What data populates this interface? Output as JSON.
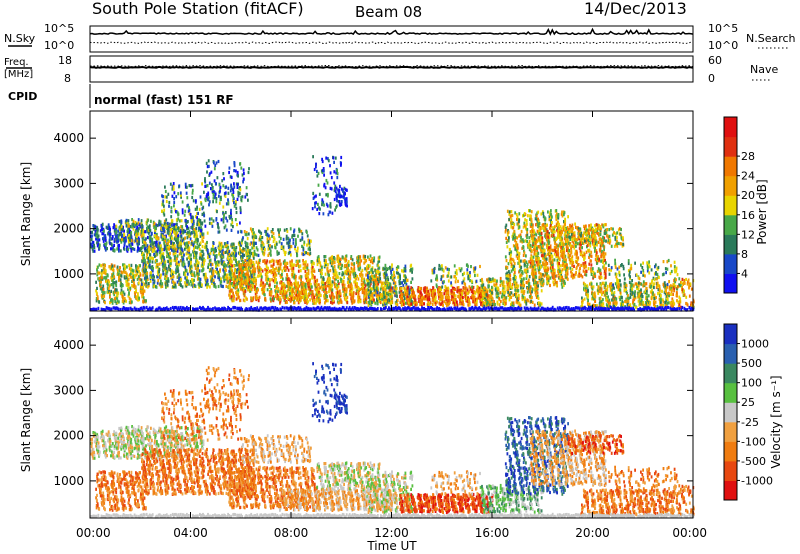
{
  "header": {
    "station": "South Pole Station (fitACF)",
    "beam": "Beam 08",
    "date": "14/Dec/2013"
  },
  "noise_panel": {
    "left_label": "N.Sky",
    "right_label": "N.Search",
    "top_tick": "10^5",
    "bottom_tick": "10^0"
  },
  "freq_panel": {
    "left_label_line1": "Freq.",
    "left_label_line2": "[MHz]",
    "right_label": "Nave",
    "left_ticks": [
      "18",
      "8"
    ],
    "right_ticks": [
      "60",
      "0"
    ]
  },
  "cpid_panel": {
    "label": "CPID",
    "mode": "normal (fast) 151 RF"
  },
  "x_axis": {
    "title": "Time UT",
    "ticks": [
      "00:00",
      "04:00",
      "08:00",
      "12:00",
      "16:00",
      "20:00",
      "00:00"
    ]
  },
  "chart_data": [
    {
      "type": "heatmap",
      "title": "",
      "xlabel": "",
      "ylabel": "Slant Range [km]",
      "xlim_hours": [
        0,
        24
      ],
      "ylim_km": [
        180,
        4600
      ],
      "yticks": [
        "1000",
        "2000",
        "3000",
        "4000"
      ],
      "colorbar": {
        "label": "Power [dB]",
        "ticks": [
          "4",
          "8",
          "12",
          "16",
          "20",
          "24",
          "28"
        ],
        "colors": [
          "#1010f0",
          "#1848c8",
          "#2a7a5a",
          "#48a848",
          "#e8d400",
          "#f0a000",
          "#f07800",
          "#e03010",
          "#e01010"
        ]
      }
    },
    {
      "type": "heatmap",
      "title": "",
      "xlabel": "Time UT",
      "ylabel": "Slant Range [km]",
      "xlim_hours": [
        0,
        24
      ],
      "ylim_km": [
        180,
        4600
      ],
      "yticks": [
        "1000",
        "2000",
        "3000",
        "4000"
      ],
      "colorbar": {
        "label": "Velocity [m s⁻¹]",
        "ticks": [
          "1000",
          "500",
          "100",
          "25",
          "-25",
          "-100",
          "-500",
          "-1000"
        ],
        "colors": [
          "#1a30c0",
          "#2a60b0",
          "#3a8860",
          "#58c040",
          "#c8c8c8",
          "#f0a040",
          "#f07c10",
          "#e84810",
          "#e01010"
        ]
      }
    }
  ]
}
